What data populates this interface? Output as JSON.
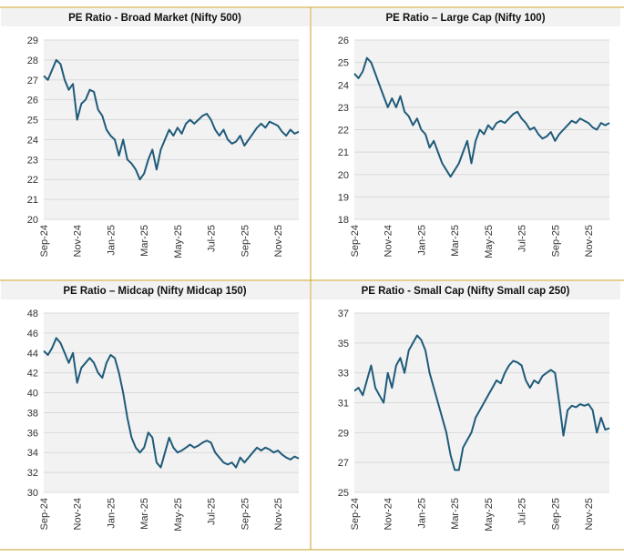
{
  "chart_data": [
    {
      "type": "line",
      "title": "PE Ratio - Broad Market (Nifty 500)",
      "color": "#1f5b7a",
      "grid": true,
      "ylim": [
        20,
        29
      ],
      "yticks": [
        20,
        21,
        22,
        23,
        24,
        25,
        26,
        27,
        28,
        29
      ],
      "categories": [
        "Sep-24",
        null,
        null,
        null,
        null,
        null,
        null,
        null,
        "Nov-24",
        null,
        null,
        null,
        null,
        null,
        null,
        null,
        "Jan-25",
        null,
        null,
        null,
        null,
        null,
        null,
        null,
        "Mar-25",
        null,
        null,
        null,
        null,
        null,
        null,
        null,
        "May-25",
        null,
        null,
        null,
        null,
        null,
        null,
        null,
        "Jul-25",
        null,
        null,
        null,
        null,
        null,
        null,
        null,
        "Sep-25",
        null,
        null,
        null,
        null,
        null,
        null,
        null,
        "Nov-25",
        null,
        null,
        null,
        null,
        null
      ],
      "values": [
        27.2,
        27,
        27.5,
        28,
        27.8,
        27,
        26.5,
        26.8,
        25,
        25.8,
        26,
        26.5,
        26.4,
        25.5,
        25.2,
        24.5,
        24.2,
        24,
        23.2,
        24,
        23,
        22.8,
        22.5,
        22,
        22.3,
        23,
        23.5,
        22.5,
        23.5,
        24,
        24.5,
        24.2,
        24.6,
        24.3,
        24.8,
        25,
        24.8,
        25,
        25.2,
        25.3,
        25,
        24.5,
        24.2,
        24.5,
        24,
        23.8,
        23.9,
        24.2,
        23.7,
        24,
        24.3,
        24.6,
        24.8,
        24.6,
        24.9,
        24.8,
        24.7,
        24.4,
        24.2,
        24.5,
        24.3,
        24.4
      ]
    },
    {
      "type": "line",
      "title": "PE Ratio – Large Cap (Nifty 100)",
      "color": "#1f5b7a",
      "grid": true,
      "ylim": [
        18,
        26
      ],
      "yticks": [
        18,
        19,
        20,
        21,
        22,
        23,
        24,
        25,
        26
      ],
      "categories": [
        "Sep-24",
        null,
        null,
        null,
        null,
        null,
        null,
        null,
        "Nov-24",
        null,
        null,
        null,
        null,
        null,
        null,
        null,
        "Jan-25",
        null,
        null,
        null,
        null,
        null,
        null,
        null,
        "Mar-25",
        null,
        null,
        null,
        null,
        null,
        null,
        null,
        "May-25",
        null,
        null,
        null,
        null,
        null,
        null,
        null,
        "Jul-25",
        null,
        null,
        null,
        null,
        null,
        null,
        null,
        "Sep-25",
        null,
        null,
        null,
        null,
        null,
        null,
        null,
        "Nov-25",
        null,
        null,
        null,
        null,
        null
      ],
      "values": [
        24.5,
        24.3,
        24.6,
        25.2,
        25,
        24.5,
        24,
        23.5,
        23,
        23.4,
        23,
        23.5,
        22.8,
        22.6,
        22.2,
        22.5,
        22,
        21.8,
        21.2,
        21.5,
        21,
        20.5,
        20.2,
        19.9,
        20.2,
        20.5,
        21,
        21.5,
        20.5,
        21.5,
        22,
        21.8,
        22.2,
        22,
        22.3,
        22.4,
        22.3,
        22.5,
        22.7,
        22.8,
        22.5,
        22.3,
        22,
        22.1,
        21.8,
        21.6,
        21.7,
        21.9,
        21.5,
        21.8,
        22,
        22.2,
        22.4,
        22.3,
        22.5,
        22.4,
        22.3,
        22.1,
        22,
        22.3,
        22.2,
        22.3
      ]
    },
    {
      "type": "line",
      "title": "PE Ratio – Midcap (Nifty Midcap 150)",
      "color": "#1f5b7a",
      "grid": true,
      "ylim": [
        30,
        48
      ],
      "yticks": [
        30,
        32,
        34,
        36,
        38,
        40,
        42,
        44,
        46,
        48
      ],
      "categories": [
        "Sep-24",
        null,
        null,
        null,
        null,
        null,
        null,
        null,
        "Nov-24",
        null,
        null,
        null,
        null,
        null,
        null,
        null,
        "Jan-25",
        null,
        null,
        null,
        null,
        null,
        null,
        null,
        "Mar-25",
        null,
        null,
        null,
        null,
        null,
        null,
        null,
        "May-25",
        null,
        null,
        null,
        null,
        null,
        null,
        null,
        "Jul-25",
        null,
        null,
        null,
        null,
        null,
        null,
        null,
        "Sep-25",
        null,
        null,
        null,
        null,
        null,
        null,
        null,
        "Nov-25",
        null,
        null,
        null,
        null,
        null
      ],
      "values": [
        44.2,
        43.8,
        44.5,
        45.5,
        45,
        44,
        43,
        44,
        41,
        42.5,
        43,
        43.5,
        43,
        42,
        41.5,
        43,
        43.8,
        43.5,
        42,
        40,
        37.5,
        35.5,
        34.5,
        34,
        34.5,
        36,
        35.5,
        33,
        32.5,
        34,
        35.5,
        34.5,
        34,
        34.2,
        34.5,
        34.8,
        34.5,
        34.7,
        35,
        35.2,
        35,
        34,
        33.5,
        33,
        32.8,
        33,
        32.5,
        33.5,
        33,
        33.5,
        34,
        34.5,
        34.2,
        34.5,
        34.3,
        34,
        34.2,
        33.8,
        33.5,
        33.3,
        33.6,
        33.4
      ]
    },
    {
      "type": "line",
      "title": "PE Ratio - Small Cap (Nifty Small cap 250)",
      "color": "#1f5b7a",
      "grid": true,
      "ylim": [
        25,
        37
      ],
      "yticks": [
        25,
        27,
        29,
        31,
        33,
        35,
        37
      ],
      "categories": [
        "Sep-24",
        null,
        null,
        null,
        null,
        null,
        null,
        null,
        "Nov-24",
        null,
        null,
        null,
        null,
        null,
        null,
        null,
        "Jan-25",
        null,
        null,
        null,
        null,
        null,
        null,
        null,
        "Mar-25",
        null,
        null,
        null,
        null,
        null,
        null,
        null,
        "May-25",
        null,
        null,
        null,
        null,
        null,
        null,
        null,
        "Jul-25",
        null,
        null,
        null,
        null,
        null,
        null,
        null,
        "Sep-25",
        null,
        null,
        null,
        null,
        null,
        null,
        null,
        "Nov-25",
        null,
        null,
        null,
        null,
        null
      ],
      "values": [
        31.8,
        32,
        31.5,
        32.5,
        33.5,
        32,
        31.5,
        31,
        33,
        32,
        33.5,
        34,
        33,
        34.5,
        35,
        35.5,
        35.2,
        34.5,
        33,
        32,
        31,
        30,
        29,
        27.5,
        26.5,
        26.5,
        28,
        28.5,
        29,
        30,
        30.5,
        31,
        31.5,
        32,
        32.5,
        32.3,
        33,
        33.5,
        33.8,
        33.7,
        33.5,
        32.5,
        32,
        32.5,
        32.3,
        32.8,
        33,
        33.2,
        33,
        31,
        28.8,
        30.5,
        30.8,
        30.7,
        30.9,
        30.8,
        30.9,
        30.5,
        29,
        30,
        29.2,
        29.3
      ]
    }
  ]
}
